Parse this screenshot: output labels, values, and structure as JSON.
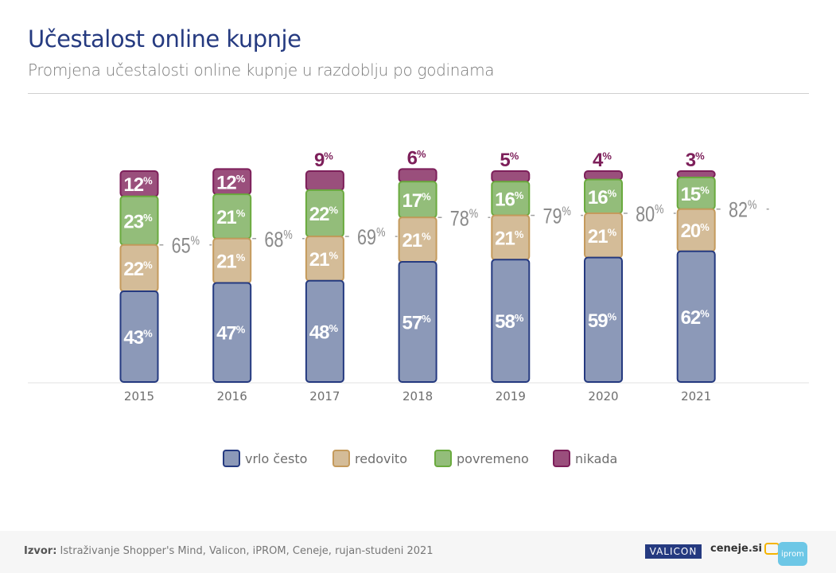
{
  "header": {
    "title": "Učestalost online kupnje",
    "subtitle": "Promjena učestalosti online kupnje u razdoblju po godinama"
  },
  "chart_data": {
    "type": "bar",
    "stacked": true,
    "title": "Učestalost online kupnje",
    "subtitle": "Promjena učestalosti online kupnje u razdoblju po godinama",
    "xlabel": "",
    "ylabel": "",
    "ylim": [
      0,
      100
    ],
    "unit": "%",
    "grid": false,
    "categories": [
      "2015",
      "2016",
      "2017",
      "2018",
      "2019",
      "2020",
      "2021"
    ],
    "series": [
      {
        "name": "vrlo često",
        "color": "#8c99b8",
        "border": "#253a80",
        "values": [
          43,
          47,
          48,
          57,
          58,
          59,
          62
        ]
      },
      {
        "name": "redovito",
        "color": "#d4bc98",
        "border": "#c49a5c",
        "values": [
          22,
          21,
          21,
          21,
          21,
          21,
          20
        ]
      },
      {
        "name": "povremeno",
        "color": "#93bd7a",
        "border": "#6aaa3e",
        "values": [
          23,
          21,
          22,
          17,
          16,
          16,
          15
        ]
      },
      {
        "name": "nikada",
        "color": "#9a4f7c",
        "border": "#7d1f5a",
        "values": [
          12,
          12,
          9,
          6,
          5,
          4,
          3
        ]
      }
    ],
    "cumulative_labels": {
      "description": "vrlo često + redovito, shown between bars",
      "values": [
        "65%",
        "68%",
        "69%",
        "78%",
        "79%",
        "80%",
        "82%"
      ]
    },
    "nikada_label_outside_from_index": 2,
    "label_colors": {
      "inside": "#ffffff",
      "outside": "#7d1f5a",
      "cumulative": "#8a8a8a",
      "tick": "#6e6e6e"
    },
    "legend": {
      "placement": "bottom-center"
    }
  },
  "legend": {
    "items": [
      {
        "label": "vrlo često"
      },
      {
        "label": "redovito"
      },
      {
        "label": "povremeno"
      },
      {
        "label": "nikada"
      }
    ]
  },
  "footer": {
    "source_label": "Izvor:",
    "source_text": " Istraživanje Shopper's Mind, Valicon, iPROM, Ceneje, rujan-studeni 2021",
    "logos": {
      "valicon": "VALICON",
      "ceneje": "ceneje.si",
      "iprom": "iprom"
    }
  }
}
